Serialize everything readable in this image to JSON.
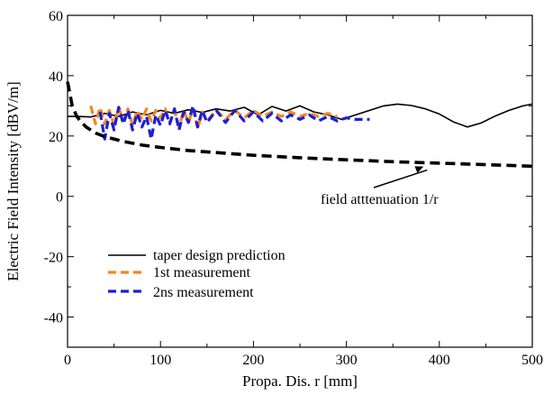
{
  "chart_data": {
    "type": "line",
    "title": "",
    "xlabel": "Propa. Dis. r [mm]",
    "ylabel": "Electric Field Intensity [dBV/m]",
    "xlim": [
      0,
      500
    ],
    "ylim": [
      -50,
      60
    ],
    "xticks": [
      0,
      100,
      200,
      300,
      400,
      500
    ],
    "yticks": [
      -40,
      -20,
      0,
      20,
      40,
      60
    ],
    "grid": false,
    "legend_position": "bottom-left",
    "series": [
      {
        "name": "taper design prediction",
        "color": "#000000",
        "style": "solid",
        "x": [
          0,
          10,
          25,
          40,
          55,
          70,
          85,
          100,
          115,
          130,
          145,
          160,
          175,
          190,
          205,
          220,
          235,
          250,
          265,
          280,
          295,
          310,
          325,
          340,
          355,
          370,
          385,
          400,
          415,
          430,
          445,
          460,
          475,
          490,
          500
        ],
        "y": [
          26.5,
          26.5,
          26.3,
          27.5,
          26.5,
          28,
          27,
          28.5,
          27.5,
          28.7,
          27.8,
          29,
          28.3,
          29.5,
          27,
          29.8,
          28.3,
          30,
          28,
          27,
          25.5,
          27,
          28.5,
          30,
          30.6,
          30.1,
          29,
          27.3,
          24.7,
          23,
          24.3,
          26.6,
          28.5,
          30,
          30.6
        ]
      },
      {
        "name": "1st measurement",
        "color": "#f5861f",
        "style": "dashed",
        "x": [
          25,
          30,
          35,
          40,
          45,
          50,
          55,
          60,
          65,
          70,
          75,
          80,
          85,
          90,
          95,
          100,
          105,
          110,
          115,
          120,
          125,
          130,
          135,
          140,
          145,
          150,
          160,
          170,
          180,
          190,
          200,
          210,
          220,
          230,
          240,
          250,
          260,
          270,
          280,
          290
        ],
        "y": [
          30,
          24,
          29.5,
          24,
          28.5,
          23.5,
          29.5,
          25,
          29,
          23.5,
          28.5,
          25.5,
          29,
          25,
          28.5,
          26,
          29,
          24.5,
          28.5,
          23,
          28.5,
          24.5,
          29,
          22.5,
          28,
          25,
          28.5,
          25.5,
          28.5,
          26,
          28.5,
          26.5,
          28,
          26.5,
          28,
          26.5,
          27.5,
          26.5,
          27.5,
          26.5
        ]
      },
      {
        "name": "2ns measurement",
        "color": "#1c1fd6",
        "style": "dashed",
        "x": [
          35,
          40,
          45,
          50,
          55,
          60,
          65,
          70,
          75,
          80,
          85,
          90,
          95,
          100,
          105,
          110,
          115,
          120,
          125,
          130,
          135,
          140,
          145,
          150,
          160,
          170,
          180,
          190,
          200,
          210,
          220,
          230,
          240,
          250,
          260,
          270,
          280,
          290,
          300,
          310,
          325
        ],
        "y": [
          28,
          19,
          27.5,
          22,
          29.5,
          24,
          28.5,
          22,
          27.5,
          23,
          26.5,
          19,
          27,
          23.5,
          28.5,
          24,
          29,
          22,
          28,
          24.5,
          30,
          23,
          28.5,
          24.5,
          28.5,
          24.5,
          28.5,
          25,
          28,
          25,
          27.5,
          25,
          27,
          25.5,
          27,
          25,
          26.5,
          25,
          26,
          25.5,
          25.5
        ]
      },
      {
        "name": "",
        "color": "#000000",
        "style": "bold-dashed",
        "x": [
          0,
          5,
          10,
          15,
          20,
          30,
          40,
          60,
          80,
          100,
          130,
          160,
          200,
          250,
          300,
          350,
          400,
          450,
          500
        ],
        "y": [
          38,
          30,
          26.5,
          24.5,
          23,
          21,
          19.8,
          18.2,
          17,
          16.2,
          15.2,
          14.5,
          13.6,
          12.8,
          12.1,
          11.5,
          11,
          10.5,
          10
        ]
      }
    ],
    "annotation": {
      "text": "field atttenuation 1/r",
      "target": [
        383,
        10.8
      ]
    }
  },
  "legend": {
    "items": [
      {
        "label": "taper design prediction",
        "color": "#000000",
        "style": "solid"
      },
      {
        "label": "1st measurement",
        "color": "#f5861f",
        "style": "dashed"
      },
      {
        "label": "2ns measurement",
        "color": "#1c1fd6",
        "style": "dashed"
      }
    ]
  }
}
